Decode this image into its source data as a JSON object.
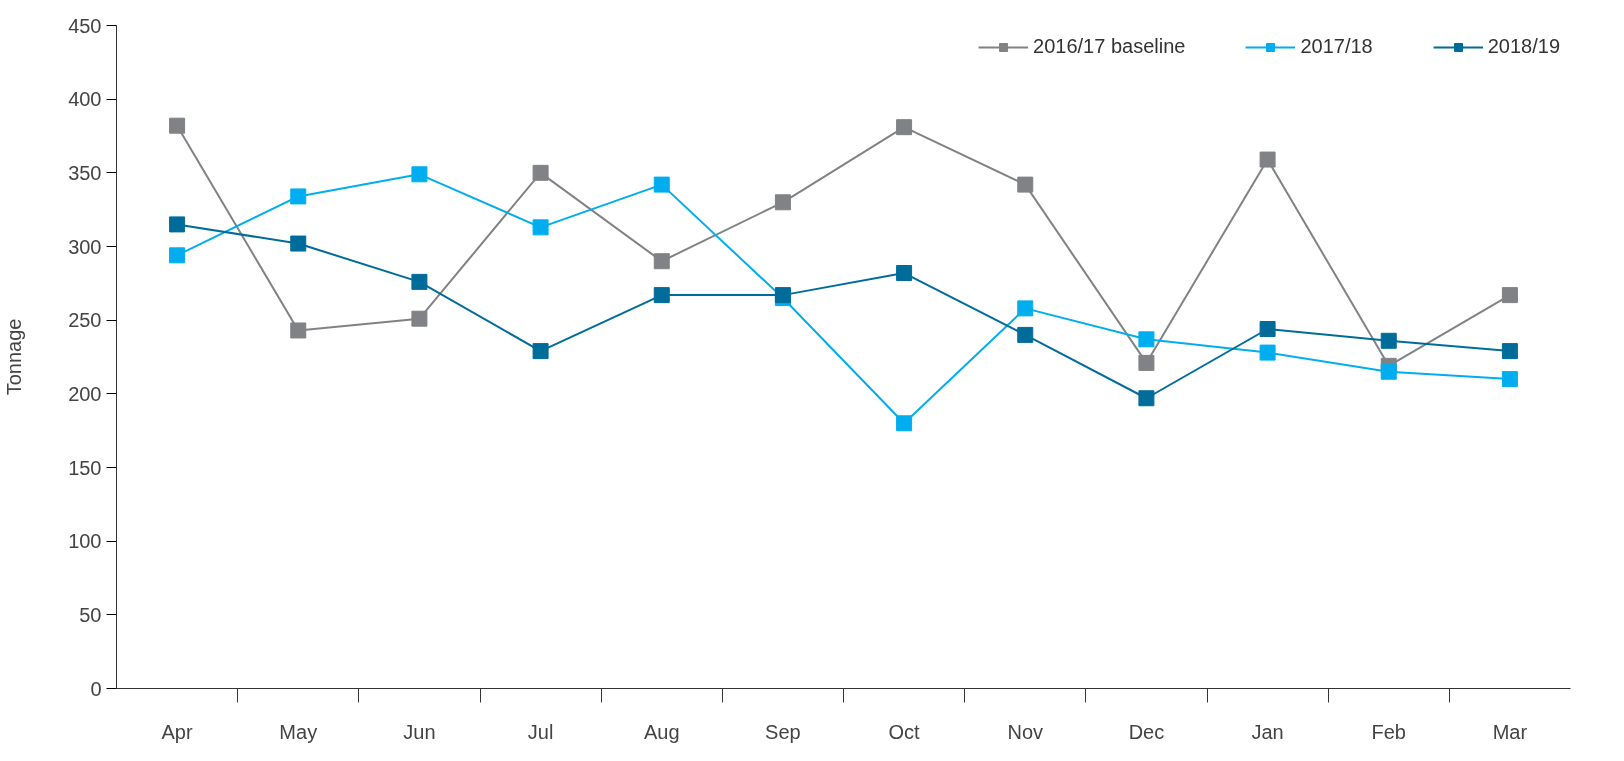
{
  "chart_data": {
    "type": "line",
    "ylabel": "Tonnage",
    "categories": [
      "Apr",
      "May",
      "Jun",
      "Jul",
      "Aug",
      "Sep",
      "Oct",
      "Nov",
      "Dec",
      "Jan",
      "Feb",
      "Mar"
    ],
    "series": [
      {
        "name": "2016/17 baseline",
        "color": "#808285",
        "values": [
          382,
          243,
          251,
          350,
          290,
          330,
          381,
          342,
          221,
          359,
          219,
          267
        ]
      },
      {
        "name": "2017/18",
        "color": "#00aeef",
        "values": [
          294,
          334,
          349,
          313,
          342,
          265,
          180,
          258,
          237,
          228,
          215,
          210
        ]
      },
      {
        "name": "2018/19",
        "color": "#006c9a",
        "values": [
          315,
          302,
          276,
          229,
          267,
          267,
          282,
          240,
          197,
          244,
          236,
          229
        ]
      }
    ],
    "ylim": [
      0,
      450
    ],
    "yticks": [
      0,
      50,
      100,
      150,
      200,
      250,
      300,
      350,
      400,
      450
    ],
    "grid": false,
    "legend": "top right",
    "marker": "square",
    "line_style": "solid"
  }
}
